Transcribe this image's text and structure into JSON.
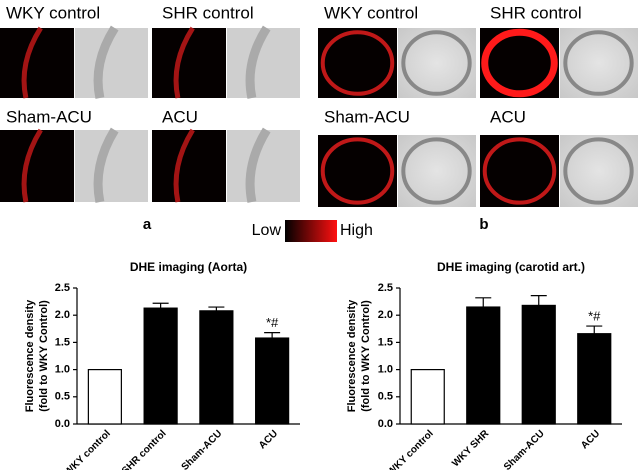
{
  "panels": [
    {
      "label": "a",
      "images": [
        "WKY control",
        "SHR control",
        "Sham-ACU",
        "ACU"
      ]
    },
    {
      "label": "b",
      "images": [
        "WKY control",
        "SHR control",
        "Sham-ACU",
        "ACU"
      ]
    }
  ],
  "colorbar": {
    "low": "Low",
    "high": "High"
  },
  "chart_data": [
    {
      "type": "bar",
      "title": "DHE imaging (Aorta)",
      "y_label": [
        "Fluorescence density",
        "(fold to WKY Control)"
      ],
      "categories": [
        "WKY control",
        "SHR control",
        "Sham-ACU",
        "ACU"
      ],
      "values": [
        1.0,
        2.13,
        2.08,
        1.58
      ],
      "errors": [
        0,
        0.09,
        0.07,
        0.1
      ],
      "annotations": [
        null,
        null,
        null,
        "*#"
      ],
      "colors": [
        "#ffffff",
        "#000000",
        "#000000",
        "#000000"
      ],
      "ylim": [
        0,
        2.5
      ],
      "yticks": [
        {
          "value": 0,
          "label": "0.0"
        },
        0.5,
        {
          "value": 1,
          "label": "1.0"
        },
        1.5,
        {
          "value": 2,
          "label": "2.0"
        },
        2.5
      ]
    },
    {
      "type": "bar",
      "title": "DHE imaging (carotid art.)",
      "y_label": [
        "Fluorescence density",
        "(fold to WKY Control)"
      ],
      "categories": [
        "WKY control",
        "WKY SHR",
        "Sham-ACU",
        "ACU"
      ],
      "values": [
        1.0,
        2.15,
        2.18,
        1.66
      ],
      "errors": [
        0,
        0.17,
        0.18,
        0.14
      ],
      "annotations": [
        null,
        null,
        null,
        "*#"
      ],
      "colors": [
        "#ffffff",
        "#000000",
        "#000000",
        "#000000"
      ],
      "ylim": [
        0,
        2.5
      ],
      "yticks": [
        {
          "value": 0,
          "label": "0.0"
        },
        0.5,
        {
          "value": 1,
          "label": "1.0"
        },
        1.5,
        {
          "value": 2,
          "label": "2.0"
        },
        2.5
      ]
    }
  ]
}
